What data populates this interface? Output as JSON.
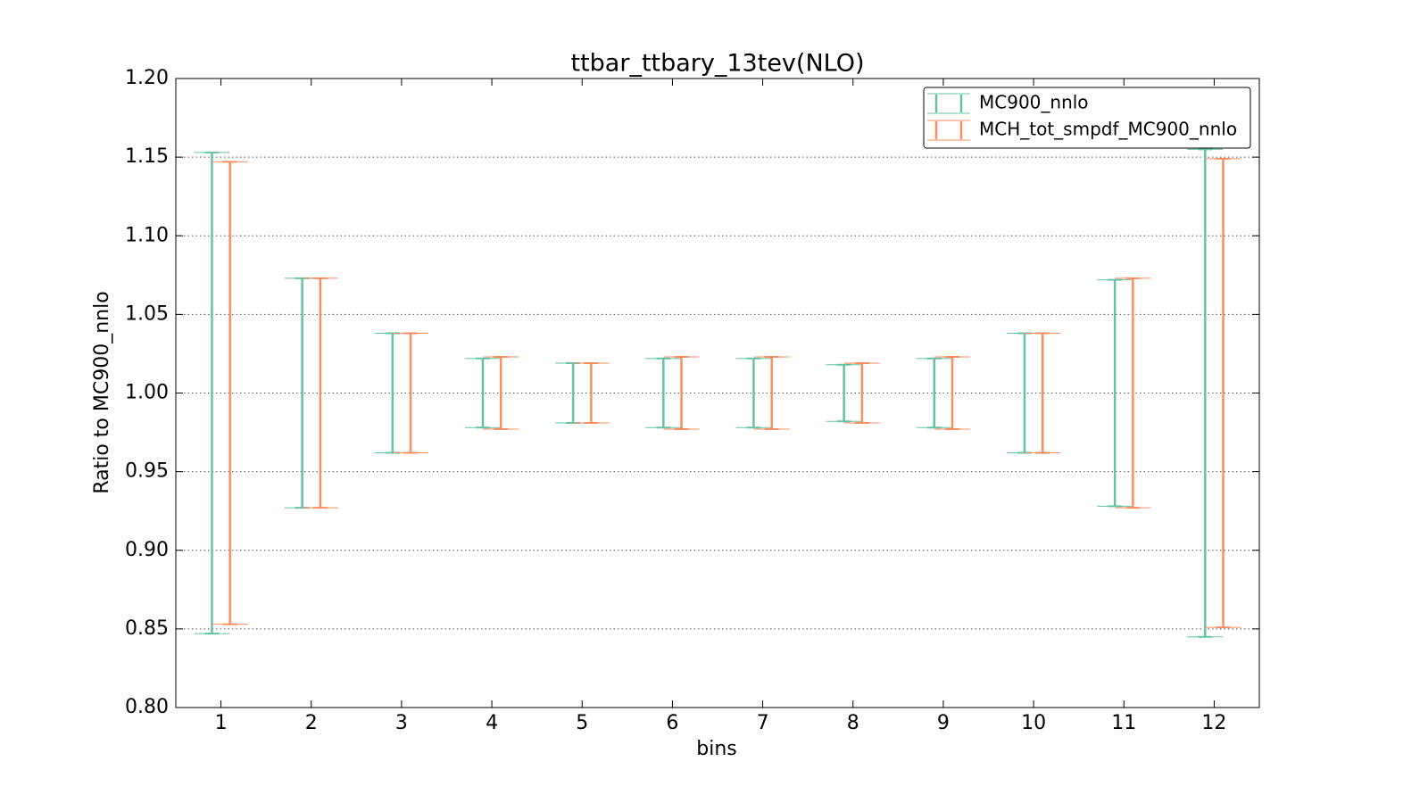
{
  "chart_data": {
    "type": "errorbar",
    "title": "ttbar_ttbary_13tev(NLO)",
    "xlabel": "bins",
    "ylabel": "Ratio to MC900_nnlo",
    "x": [
      1,
      2,
      3,
      4,
      5,
      6,
      7,
      8,
      9,
      10,
      11,
      12
    ],
    "xlim": [
      0.5,
      12.5
    ],
    "xticks": [
      1,
      2,
      3,
      4,
      5,
      6,
      7,
      8,
      9,
      10,
      11,
      12
    ],
    "ylim": [
      0.8,
      1.2
    ],
    "yticks": [
      {
        "value": 0.8,
        "label": "0.80"
      },
      {
        "value": 0.85,
        "label": "0.85"
      },
      {
        "value": 0.9,
        "label": "0.90"
      },
      {
        "value": 0.95,
        "label": "0.95"
      },
      {
        "value": 1.0,
        "label": "1.00"
      },
      {
        "value": 1.05,
        "label": "1.05"
      },
      {
        "value": 1.1,
        "label": "1.10"
      },
      {
        "value": 1.15,
        "label": "1.15"
      },
      {
        "value": 1.2,
        "label": "1.20"
      }
    ],
    "grid": true,
    "legend": "upper right",
    "series": [
      {
        "name": "MC900_nnlo",
        "color": "#66c2a5",
        "values": [
          1,
          1,
          1,
          1,
          1,
          1,
          1,
          1,
          1,
          1,
          1,
          1
        ],
        "errors": [
          0.153,
          0.073,
          0.038,
          0.022,
          0.019,
          0.022,
          0.022,
          0.018,
          0.022,
          0.038,
          0.072,
          0.155
        ]
      },
      {
        "name": "MCH_tot_smpdf_MC900_nnlo",
        "color": "#fc8d62",
        "values": [
          1,
          1,
          1,
          1,
          1,
          1,
          1,
          1,
          1,
          1,
          1,
          1
        ],
        "errors": [
          0.147,
          0.073,
          0.038,
          0.023,
          0.019,
          0.023,
          0.023,
          0.019,
          0.023,
          0.038,
          0.073,
          0.149
        ]
      }
    ]
  }
}
